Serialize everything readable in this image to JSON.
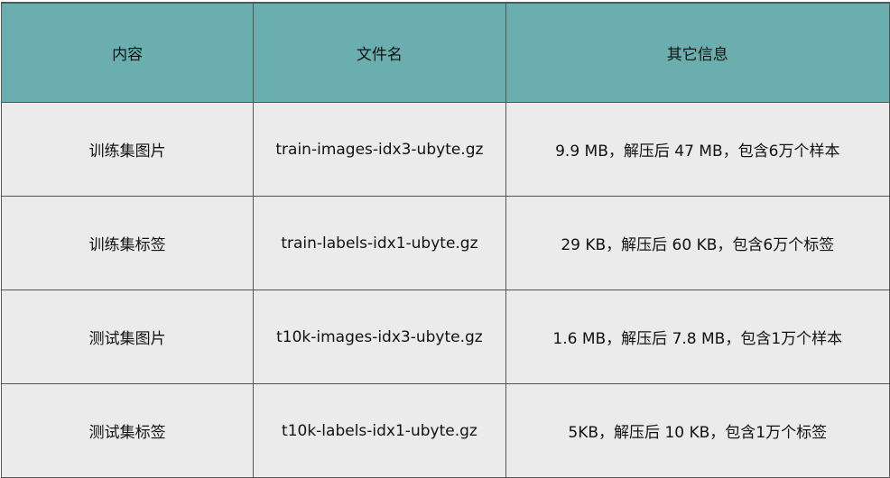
{
  "colors": {
    "header_bg": "#6aaeb0",
    "row_bg": "#ebebeb",
    "border": "#555555"
  },
  "headers": [
    "内容",
    "文件名",
    "其它信息"
  ],
  "rows": [
    [
      "训练集图片",
      "train-images-idx3-ubyte.gz",
      "9.9 MB，解压后 47 MB，包含6万个样本"
    ],
    [
      "训练集标签",
      "train-labels-idx1-ubyte.gz",
      "29 KB，解压后 60 KB，包含6万个标签"
    ],
    [
      "测试集图片",
      "t10k-images-idx3-ubyte.gz",
      "1.6 MB，解压后 7.8 MB，包含1万个样本"
    ],
    [
      "测试集标签",
      "t10k-labels-idx1-ubyte.gz",
      "5KB，解压后 10 KB，包含1万个标签"
    ]
  ]
}
